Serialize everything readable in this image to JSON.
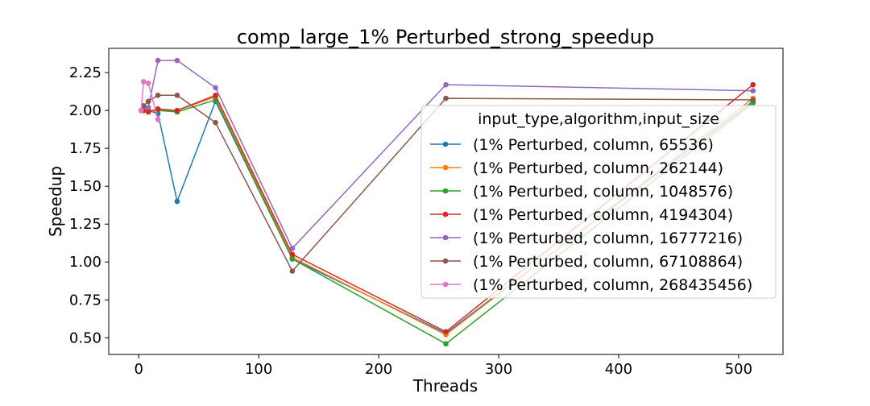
{
  "chart_data": {
    "type": "line",
    "title": "comp_large_1% Perturbed_strong_speedup",
    "xlabel": "Threads",
    "ylabel": "Speedup",
    "xlim": [
      -25,
      537
    ],
    "ylim": [
      0.39,
      2.41
    ],
    "xticks": [
      0,
      100,
      200,
      300,
      400,
      500
    ],
    "yticks": [
      0.5,
      0.75,
      1.0,
      1.25,
      1.5,
      1.75,
      2.0,
      2.25
    ],
    "xtick_labels": [
      "0",
      "100",
      "200",
      "300",
      "400",
      "500"
    ],
    "ytick_labels": [
      "0.50",
      "0.75",
      "1.00",
      "1.25",
      "1.50",
      "1.75",
      "2.00",
      "2.25"
    ],
    "legend": {
      "title": "input_type,algorithm,input_size",
      "placement": "right"
    },
    "series": [
      {
        "name": "(1% Perturbed, column, 65536)",
        "color": "#1f77b4",
        "x": [
          2,
          4,
          8,
          16,
          32,
          64,
          128,
          256,
          512
        ],
        "y": [
          2.0,
          2.0,
          2.0,
          1.98,
          1.4,
          2.06,
          1.02,
          0.53,
          2.06
        ]
      },
      {
        "name": "(1% Perturbed, column, 262144)",
        "color": "#ff7f0e",
        "x": [
          2,
          4,
          8,
          16,
          32,
          64,
          128,
          256,
          512
        ],
        "y": [
          2.0,
          2.0,
          1.99,
          2.0,
          2.0,
          2.09,
          1.03,
          0.52,
          2.08
        ]
      },
      {
        "name": "(1% Perturbed, column, 1048576)",
        "color": "#2ca02c",
        "x": [
          2,
          4,
          8,
          16,
          32,
          64,
          128,
          256,
          512
        ],
        "y": [
          2.0,
          2.0,
          2.0,
          2.0,
          1.99,
          2.07,
          1.02,
          0.46,
          2.05
        ]
      },
      {
        "name": "(1% Perturbed, column, 4194304)",
        "color": "#d62728",
        "x": [
          2,
          4,
          8,
          16,
          32,
          64,
          128,
          256,
          512
        ],
        "y": [
          2.0,
          2.0,
          1.99,
          2.01,
          2.0,
          2.1,
          1.05,
          0.54,
          2.17
        ]
      },
      {
        "name": "(1% Perturbed, column, 16777216)",
        "color": "#9467bd",
        "x": [
          2,
          4,
          8,
          16,
          32,
          64,
          128,
          256,
          512
        ],
        "y": [
          2.0,
          2.02,
          2.02,
          2.33,
          2.33,
          2.15,
          1.09,
          2.17,
          2.13
        ]
      },
      {
        "name": "(1% Perturbed, column, 67108864)",
        "color": "#8c564b",
        "x": [
          2,
          4,
          8,
          16,
          32,
          64,
          128,
          256,
          512
        ],
        "y": [
          2.0,
          2.03,
          2.06,
          2.1,
          2.1,
          1.92,
          0.94,
          2.08,
          2.07
        ]
      },
      {
        "name": "(1% Perturbed, column, 268435456)",
        "color": "#e377c2",
        "x": [
          2,
          4,
          8,
          16
        ],
        "y": [
          2.0,
          2.19,
          2.18,
          1.94
        ]
      }
    ]
  }
}
